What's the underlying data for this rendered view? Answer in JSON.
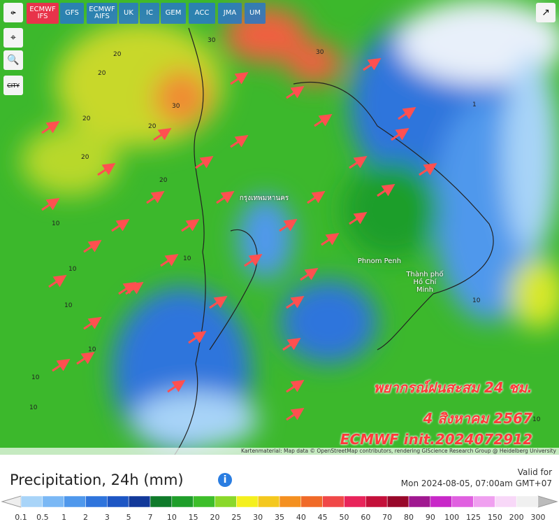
{
  "toolbar": {
    "models": [
      "ECMWF IFS",
      "GFS",
      "ECMWF AIFS",
      "UK",
      "IC",
      "GEM",
      "ACC",
      "JMA",
      "UM"
    ],
    "active": 0
  },
  "sidebar": {
    "city_button": "CITY"
  },
  "map": {
    "places": [
      "กรุงเทพมหานคร",
      "Phnom Penh",
      "Thành phố Hồ Chí Minh"
    ],
    "contour_labels": [
      "20",
      "20",
      "20",
      "20",
      "20",
      "20",
      "30",
      "30",
      "30",
      "10",
      "10",
      "10",
      "10",
      "10",
      "10",
      "10",
      "10",
      "10",
      "1"
    ],
    "overlay": [
      "พยากรณ์ฝนสะสม 24 ชม.",
      "4 สิงหาคม 2567",
      "ECMWF init.2024072912"
    ],
    "attribution": "Kartenmaterial: Map data © OpenStreetMap contributors, rendering GIScience Research Group @ Heidelberg University"
  },
  "legend": {
    "title": "Precipitation, 24h (mm)",
    "valid_label": "Valid for",
    "valid_time": "Mon 2024-08-05, 07:00am GMT+07",
    "ticks": [
      0.1,
      0.5,
      1,
      2,
      3,
      5,
      7,
      10,
      15,
      20,
      25,
      30,
      35,
      40,
      45,
      50,
      60,
      70,
      80,
      90,
      100,
      125,
      150,
      200,
      300
    ],
    "colors": [
      "#a8d4f8",
      "#7ab8f5",
      "#4f98ec",
      "#2f74dc",
      "#1d56c4",
      "#12399a",
      "#0f7a2a",
      "#1f9e2a",
      "#3dbe2a",
      "#8ad82a",
      "#f4f01e",
      "#f4c81e",
      "#f49020",
      "#f06a28",
      "#f04848",
      "#e8245a",
      "#c4103a",
      "#98082a",
      "#a01890",
      "#c828c8",
      "#e060e0",
      "#f0a0f0",
      "#f8d8f8",
      "#f0f0f0"
    ]
  }
}
